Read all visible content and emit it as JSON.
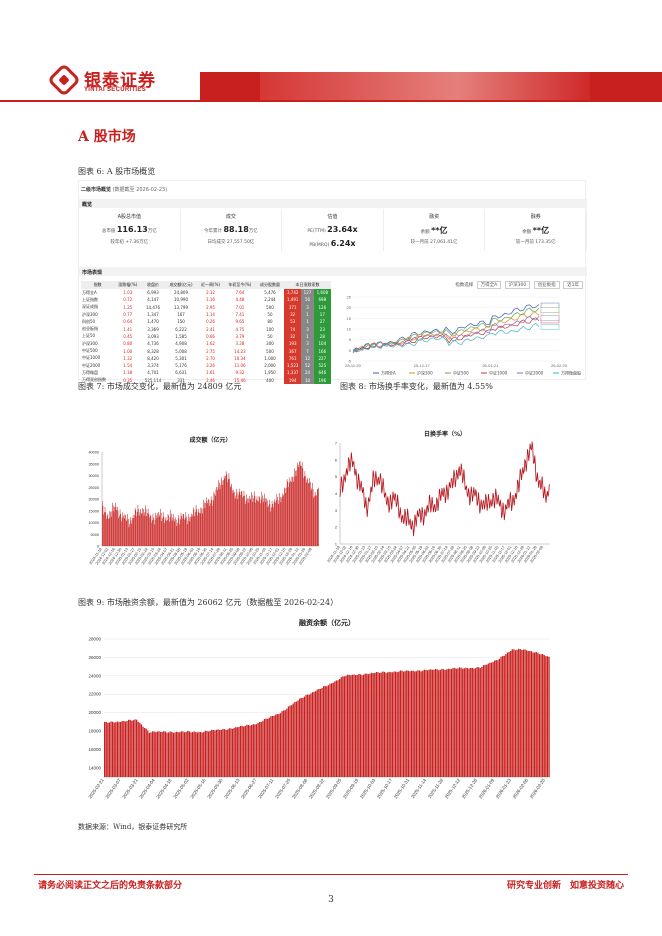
{
  "header": {
    "brand_cn": "银泰证券",
    "brand_en": "YINTAI SECURITIES"
  },
  "section_title": "A 股市场",
  "captions": {
    "fig6": "图表 6: A 股市场概览",
    "fig7": "图表 7: 市场成交变化，最新值为 24809 亿元",
    "fig8": "图表 8: 市场换手率变化，最新值为 4.55%",
    "fig9": "图表 9: 市场融资余额，最新值为 26062 亿元（数据截至 2026-02-24）"
  },
  "dashboard": {
    "title": "二级市场概览",
    "meta": "(数据截至 2026-02-23)",
    "overview_label": "概览",
    "cards": [
      {
        "title": "A股总市值",
        "l1_label": "总市值",
        "l1_value": "116.13",
        "l1_unit": "万亿",
        "l2_label": "较年初",
        "l2_value": "+7.36万亿"
      },
      {
        "title": "成交",
        "l1_label": "今年累计",
        "l1_value": "88.18",
        "l1_unit": "万亿",
        "l2_label": "日均成交",
        "l2_value": "27,557.50亿"
      },
      {
        "title": "估值",
        "l1_label": "PE(TTM)",
        "l1_value": "23.64x",
        "l1_unit": "",
        "l2_label": "PB(MRQ)",
        "l2_value": "6.24x"
      },
      {
        "title": "融资",
        "l1_label": "余额",
        "l1_value": "**亿",
        "l1_unit": "",
        "l2_label": "较一月前",
        "l2_value": "27,061.41亿"
      },
      {
        "title": "融券",
        "l1_label": "余额",
        "l1_value": "**亿",
        "l1_unit": "",
        "l2_label": "较一月前",
        "l2_value": "173.35亿"
      }
    ],
    "market_label": "市场表现",
    "table_headers": [
      "指数",
      "涨跌幅(%)",
      "收盘价",
      "成交额(亿元)",
      "近一周(%)",
      "年初至今(%)",
      "成分股数量",
      "本日涨跌家数"
    ],
    "table_rows": [
      [
        "万得全A",
        "1.03",
        "6,993",
        "24,809",
        "2.12",
        "7.64",
        "5,476",
        "3,742",
        "127",
        "1,608"
      ],
      [
        "上证指数",
        "0.72",
        "4,147",
        "10,990",
        "1.16",
        "4.48",
        "2,244",
        "1,491",
        "56",
        "698"
      ],
      [
        "深证成指",
        "1.25",
        "14,476",
        "13,799",
        "2.95",
        "7.01",
        "500",
        "371",
        "3",
        "126"
      ],
      [
        "沪深300",
        "0.77",
        "1,347",
        "167",
        "1.14",
        "7.41",
        "50",
        "32",
        "1",
        "17"
      ],
      [
        "科创50",
        "0.64",
        "1,470",
        "150",
        "0.26",
        "9.65",
        "80",
        "53",
        "1",
        "27"
      ],
      [
        "创业板指",
        "1.41",
        "3,369",
        "6,222",
        "2.41",
        "4.75",
        "100",
        "74",
        "3",
        "23"
      ],
      [
        "上证50",
        "0.45",
        "3,093",
        "1,585",
        "0.66",
        "3.79",
        "50",
        "32",
        "1",
        "28"
      ],
      [
        "沪深300",
        "0.80",
        "4,736",
        "4,908",
        "1.62",
        "3.28",
        "300",
        "193",
        "3",
        "104"
      ],
      [
        "中证500",
        "1.00",
        "8,328",
        "5,008",
        "2.75",
        "14.23",
        "500",
        "367",
        "7",
        "166"
      ],
      [
        "中证1000",
        "1.32",
        "8,420",
        "5,301",
        "2.70",
        "10.34",
        "1,000",
        "761",
        "12",
        "227"
      ],
      [
        "中证2000",
        "1.54",
        "3,374",
        "5,176",
        "3.26",
        "11.06",
        "2,000",
        "1,523",
        "52",
        "525"
      ],
      [
        "万得微盘",
        "1.18",
        "4,701",
        "6,631",
        "1.61",
        "9.32",
        "1,950",
        "1,337",
        "24",
        "646"
      ],
      [
        "万得双创指数",
        "0.35",
        "525,114",
        "331",
        "2.46",
        "15.46",
        "400",
        "194",
        "10",
        "196"
      ]
    ],
    "controls": {
      "label": "指数选择",
      "opt1": "万得全A",
      "opt2": "沪深300",
      "opt3": "创业板指",
      "opt4": "近1年"
    },
    "index_chart": {
      "x_labels": [
        "25-11-20",
        "25-12-17",
        "26-01-21",
        "26-02-20"
      ],
      "y_ticks": [
        "25",
        "20",
        "15",
        "10",
        "5",
        "0",
        "-5"
      ],
      "legend": [
        "万得全A",
        "沪深300",
        "中证500",
        "中证1000",
        "中证2000",
        "万得微盘股"
      ],
      "colors": [
        "#3b5bb5",
        "#e08b2a",
        "#6aa84f",
        "#c0392b",
        "#8e6bbf",
        "#3fb0c9"
      ]
    }
  },
  "fig7": {
    "title": "成交额（亿元）",
    "y_ticks": [
      "40000",
      "35000",
      "30000",
      "25000",
      "20000",
      "15000",
      "10000",
      "5000",
      "0"
    ],
    "x_labels": [
      "2024-11-18",
      "2024-12-02",
      "2024-12-16",
      "2024-12-30",
      "2025-01-13",
      "2025-01-27",
      "2025-02-10",
      "2025-02-24",
      "2025-03-10",
      "2025-03-24",
      "2025-04-07",
      "2025-04-21",
      "2025-05-05",
      "2025-05-19",
      "2025-06-02",
      "2025-06-16",
      "2025-06-30",
      "2025-07-14",
      "2025-07-28",
      "2025-08-11",
      "2025-08-25",
      "2025-09-08",
      "2025-09-22",
      "2025-10-06",
      "2025-10-20",
      "2025-11-03",
      "2025-11-17",
      "2025-12-01",
      "2025-12-15",
      "2025-12-29",
      "2026-01-12",
      "2026-01-26",
      "2026-02-09"
    ]
  },
  "fig8": {
    "title": "日换手率（%）",
    "y_ticks": [
      "7",
      "6",
      "5",
      "4",
      "3",
      "2",
      "1"
    ],
    "x_labels": [
      "2024-11-18",
      "2024-12-02",
      "2024-12-16",
      "2024-12-30",
      "2025-01-13",
      "2025-01-27",
      "2025-02-10",
      "2025-02-24",
      "2025-03-10",
      "2025-03-24",
      "2025-04-07",
      "2025-04-21",
      "2025-05-05",
      "2025-05-19",
      "2025-06-02",
      "2025-06-16",
      "2025-06-30",
      "2025-07-14",
      "2025-07-28",
      "2025-08-11",
      "2025-08-25",
      "2025-09-08",
      "2025-09-22",
      "2025-10-06",
      "2025-10-20",
      "2025-11-03",
      "2025-11-17",
      "2025-12-01",
      "2025-12-15",
      "2025-12-29",
      "2026-01-12",
      "2026-01-26",
      "2026-02-09"
    ]
  },
  "fig9": {
    "title": "融资余额（亿元）",
    "y_ticks": [
      "28000",
      "26000",
      "24000",
      "22000",
      "20000",
      "18000",
      "16000",
      "14000"
    ],
    "x_labels": [
      "2025-02-21",
      "2025-03-07",
      "2025-03-21",
      "2025-04-04",
      "2025-04-18",
      "2025-05-02",
      "2025-05-16",
      "2025-05-30",
      "2025-06-13",
      "2025-06-27",
      "2025-07-11",
      "2025-07-25",
      "2025-08-08",
      "2025-08-22",
      "2025-09-05",
      "2025-09-19",
      "2025-10-03",
      "2025-10-17",
      "2025-10-31",
      "2025-11-14",
      "2025-11-28",
      "2025-12-12",
      "2025-12-26",
      "2026-01-09",
      "2026-01-23",
      "2026-02-06",
      "2026-02-20"
    ]
  },
  "chart_data": [
    {
      "type": "bar",
      "title": "成交额（亿元）",
      "ylim": [
        0,
        40000
      ],
      "start": "2024-11-18",
      "end": "2026-02-24",
      "anchors": [
        [
          0,
          16000
        ],
        [
          10,
          13000
        ],
        [
          20,
          17000
        ],
        [
          30,
          12000
        ],
        [
          40,
          11000
        ],
        [
          50,
          14000
        ],
        [
          60,
          16000
        ],
        [
          70,
          12000
        ],
        [
          80,
          13000
        ],
        [
          90,
          12500
        ],
        [
          100,
          12000
        ],
        [
          110,
          11500
        ],
        [
          120,
          12000
        ],
        [
          130,
          13000
        ],
        [
          140,
          15000
        ],
        [
          150,
          17500
        ],
        [
          160,
          20000
        ],
        [
          170,
          25000
        ],
        [
          180,
          31000
        ],
        [
          190,
          24000
        ],
        [
          200,
          22000
        ],
        [
          210,
          21000
        ],
        [
          220,
          20000
        ],
        [
          230,
          21000
        ],
        [
          240,
          19000
        ],
        [
          250,
          17500
        ],
        [
          260,
          21000
        ],
        [
          270,
          25000
        ],
        [
          280,
          31000
        ],
        [
          290,
          35000
        ],
        [
          300,
          28000
        ],
        [
          310,
          22000
        ],
        [
          316,
          24809
        ]
      ],
      "latest": 24809
    },
    {
      "type": "line",
      "title": "日换手率（%）",
      "ylim": [
        1,
        7
      ],
      "start": "2024-11-18",
      "end": "2026-02-24",
      "anchors": [
        [
          0,
          4.0
        ],
        [
          10,
          5.5
        ],
        [
          20,
          5.8
        ],
        [
          30,
          4.5
        ],
        [
          40,
          3.2
        ],
        [
          50,
          4.6
        ],
        [
          60,
          5.1
        ],
        [
          70,
          3.4
        ],
        [
          80,
          3.8
        ],
        [
          90,
          3.0
        ],
        [
          100,
          2.4
        ],
        [
          110,
          2.2
        ],
        [
          120,
          2.6
        ],
        [
          130,
          3.0
        ],
        [
          140,
          3.3
        ],
        [
          150,
          3.6
        ],
        [
          160,
          4.2
        ],
        [
          170,
          4.5
        ],
        [
          180,
          5.6
        ],
        [
          190,
          4.3
        ],
        [
          200,
          3.9
        ],
        [
          210,
          3.6
        ],
        [
          220,
          3.2
        ],
        [
          230,
          3.8
        ],
        [
          240,
          3.4
        ],
        [
          250,
          3.0
        ],
        [
          260,
          3.6
        ],
        [
          270,
          4.4
        ],
        [
          280,
          6.0
        ],
        [
          290,
          6.6
        ],
        [
          300,
          4.7
        ],
        [
          310,
          3.8
        ],
        [
          316,
          4.55
        ]
      ],
      "latest": 4.55
    },
    {
      "type": "bar",
      "title": "融资余额（亿元）",
      "ylim": [
        13000,
        28000
      ],
      "start": "2025-02-21",
      "end": "2026-02-24",
      "anchors": [
        [
          0,
          18900
        ],
        [
          20,
          19200
        ],
        [
          28,
          17900
        ],
        [
          60,
          17900
        ],
        [
          80,
          18300
        ],
        [
          95,
          18800
        ],
        [
          110,
          20000
        ],
        [
          125,
          21800
        ],
        [
          140,
          23000
        ],
        [
          150,
          24000
        ],
        [
          175,
          24400
        ],
        [
          200,
          24600
        ],
        [
          220,
          24800
        ],
        [
          235,
          24900
        ],
        [
          245,
          25700
        ],
        [
          255,
          26800
        ],
        [
          262,
          26900
        ],
        [
          270,
          26500
        ],
        [
          278,
          26062
        ]
      ],
      "latest": 26062
    }
  ],
  "source": "数据来源：Wind，银泰证券研究所",
  "footer": {
    "left": "请务必阅读正文之后的免责条款部分",
    "right": "研究专业创新　如意投资随心",
    "page": "3"
  }
}
